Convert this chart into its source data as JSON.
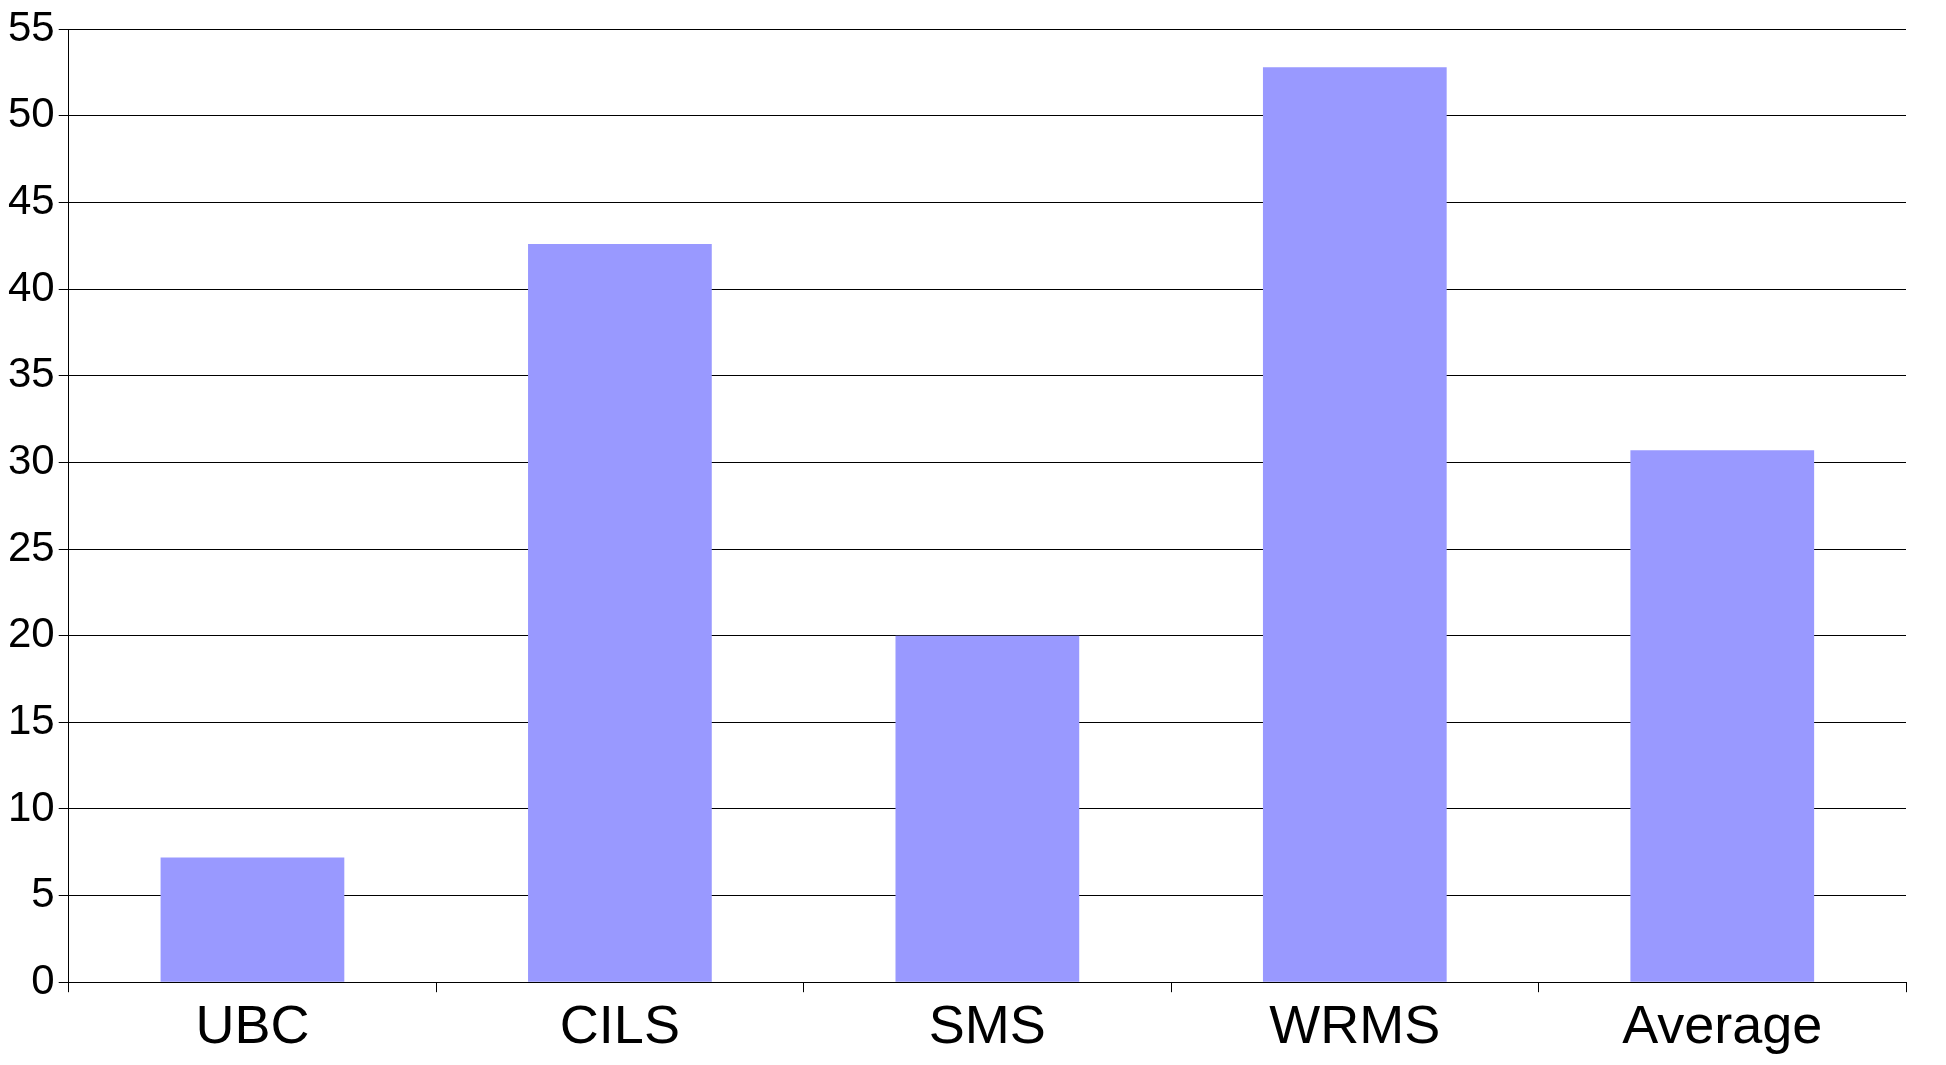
{
  "chart_data": {
    "type": "bar",
    "categories": [
      "UBC",
      "CILS",
      "SMS",
      "WRMS",
      "Average"
    ],
    "values": [
      7.2,
      42.6,
      20,
      52.8,
      30.7
    ],
    "color": "#9999ff",
    "ylim": [
      0,
      55
    ],
    "yticks": [
      0,
      5,
      10,
      15,
      20,
      25,
      30,
      35,
      40,
      45,
      50,
      55
    ],
    "grid": "y",
    "legend": false
  }
}
